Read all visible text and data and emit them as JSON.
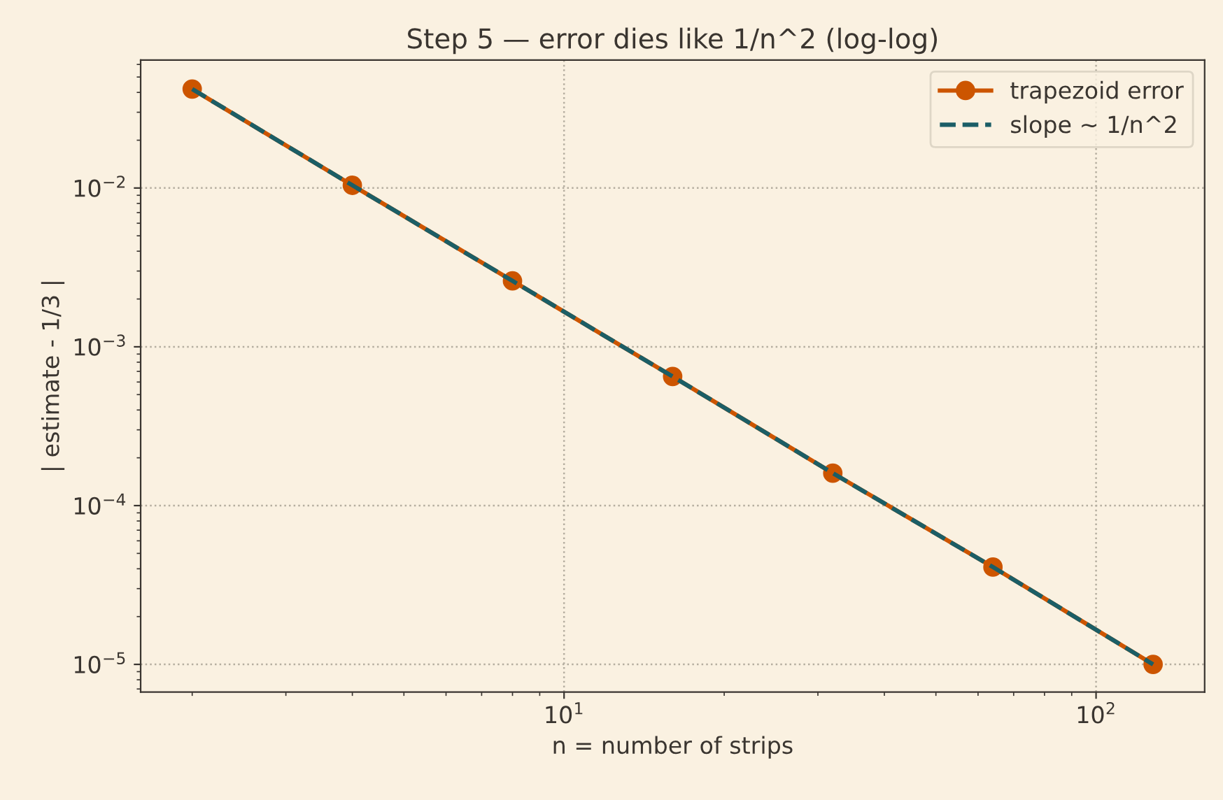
{
  "chart_data": {
    "type": "line",
    "title": "Step 5 — error dies like 1/n^2 (log-log)",
    "xlabel": "n = number of strips",
    "ylabel": "| estimate - 1/3 |",
    "x": [
      2,
      4,
      8,
      16,
      32,
      64,
      128
    ],
    "series": [
      {
        "name": "trapezoid error",
        "color": "#cc5500",
        "marker": "circle",
        "line_style": "solid",
        "values": [
          0.042,
          0.0104,
          0.0026,
          0.00065,
          0.00016,
          4.1e-05,
          1e-05
        ]
      },
      {
        "name": "slope ~ 1/n^2",
        "color": "#1b5e66",
        "marker": "none",
        "line_style": "dashed",
        "values": [
          0.042,
          0.0104,
          0.0026,
          0.00065,
          0.00016,
          4.1e-05,
          1e-05
        ]
      }
    ],
    "log": "xy",
    "xlim": [
      1.6,
      160
    ],
    "ylim": [
      6.7e-06,
      0.064
    ],
    "xticks": [
      {
        "value": 10,
        "label": "10$^{1}$"
      },
      {
        "value": 100,
        "label": "10$^{2}$"
      }
    ],
    "yticks": [
      {
        "value": 1e-05,
        "label": "10$^{−5}$"
      },
      {
        "value": 0.0001,
        "label": "10$^{−4}$"
      },
      {
        "value": 0.001,
        "label": "10$^{−3}$"
      },
      {
        "value": 0.01,
        "label": "10$^{−2}$"
      }
    ],
    "grid": true,
    "legend": "top right"
  }
}
